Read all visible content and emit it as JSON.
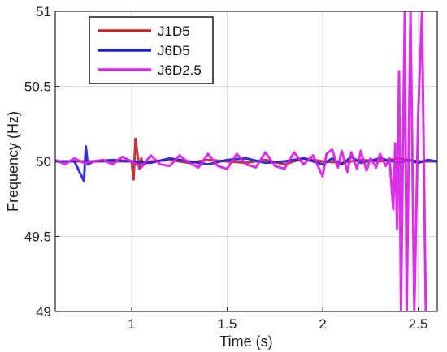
{
  "chart_data": {
    "type": "line",
    "xlabel": "Time (s)",
    "ylabel": "Frequency (Hz)",
    "xlim": [
      0.6,
      2.6
    ],
    "ylim": [
      49,
      51
    ],
    "x_ticks": [
      1,
      1.5,
      2,
      2.5
    ],
    "x_tick_labels": [
      "1",
      "1.5",
      "2",
      "2.5"
    ],
    "y_ticks": [
      49,
      49.5,
      50,
      50.5,
      51
    ],
    "y_tick_labels": [
      "49",
      "49.5",
      "50",
      "50.5",
      "51"
    ],
    "grid": true,
    "legend_position": "top-left",
    "series": [
      {
        "name": "J1D5",
        "color": "#c0252a",
        "x": [
          0.6,
          0.7,
          0.8,
          0.9,
          0.95,
          1.0,
          1.01,
          1.02,
          1.03,
          1.04,
          1.05,
          1.06,
          1.1,
          1.2,
          1.3,
          1.4,
          1.5,
          1.6,
          1.7,
          1.8,
          1.9,
          2.0,
          2.1,
          2.2,
          2.3,
          2.4,
          2.5,
          2.6
        ],
        "y": [
          50.0,
          50.0,
          50.0,
          50.0,
          50.0,
          50.0,
          49.88,
          50.15,
          50.05,
          49.95,
          50.02,
          49.98,
          50.0,
          50.01,
          49.99,
          50.01,
          50.0,
          49.99,
          50.01,
          49.98,
          50.02,
          50.0,
          49.99,
          50.01,
          50.0,
          50.02,
          50.0,
          50.0
        ]
      },
      {
        "name": "J6D5",
        "color": "#2020d8",
        "x": [
          0.6,
          0.7,
          0.75,
          0.76,
          0.77,
          0.8,
          0.9,
          1.0,
          1.1,
          1.2,
          1.3,
          1.4,
          1.5,
          1.6,
          1.7,
          1.8,
          1.9,
          2.0,
          2.05,
          2.1,
          2.15,
          2.2,
          2.3,
          2.4,
          2.45,
          2.5,
          2.55,
          2.6
        ],
        "y": [
          50.0,
          50.0,
          49.87,
          50.1,
          49.98,
          50.0,
          50.01,
          50.0,
          49.99,
          50.02,
          50.0,
          49.98,
          50.01,
          50.02,
          49.99,
          50.0,
          50.02,
          49.98,
          50.02,
          49.98,
          50.03,
          49.99,
          50.02,
          49.99,
          50.01,
          49.99,
          50.01,
          50.0
        ]
      },
      {
        "name": "J6D2.5",
        "color": "#d81ee8",
        "x": [
          0.6,
          0.65,
          0.7,
          0.75,
          0.8,
          0.85,
          0.9,
          0.95,
          1.0,
          1.05,
          1.1,
          1.15,
          1.2,
          1.25,
          1.3,
          1.35,
          1.4,
          1.45,
          1.5,
          1.55,
          1.6,
          1.65,
          1.7,
          1.75,
          1.8,
          1.85,
          1.9,
          1.95,
          2.0,
          2.02,
          2.05,
          2.08,
          2.1,
          2.13,
          2.15,
          2.18,
          2.2,
          2.23,
          2.25,
          2.28,
          2.3,
          2.33,
          2.35,
          2.37,
          2.38,
          2.39,
          2.4,
          2.41,
          2.42,
          2.43,
          2.44,
          2.46,
          2.48,
          2.5,
          2.52,
          2.54
        ],
        "y": [
          50.01,
          49.98,
          50.02,
          49.99,
          50.0,
          50.01,
          49.98,
          50.03,
          50.0,
          49.96,
          50.04,
          49.98,
          49.97,
          50.04,
          49.99,
          49.96,
          50.05,
          49.97,
          49.95,
          50.05,
          49.98,
          49.96,
          50.06,
          49.97,
          49.95,
          50.06,
          49.98,
          50.04,
          49.9,
          50.05,
          50.08,
          49.96,
          50.07,
          49.93,
          50.06,
          49.95,
          50.07,
          49.94,
          50.02,
          49.96,
          50.05,
          49.97,
          50.02,
          49.68,
          50.12,
          49.55,
          50.6,
          49.0,
          50.05,
          51.0,
          49.0,
          51.0,
          49.0,
          50.3,
          51.0,
          49.0
        ]
      }
    ]
  }
}
